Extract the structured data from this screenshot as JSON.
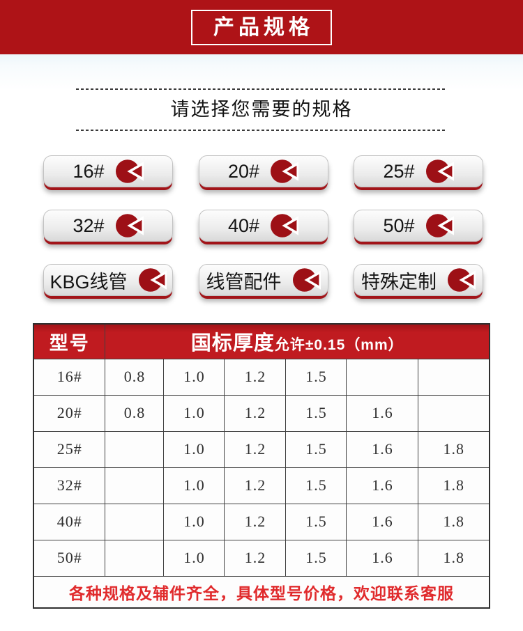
{
  "banner": {
    "title": "产品规格",
    "bg_color": "#ae1317"
  },
  "section": {
    "title": "请选择您需要的规格"
  },
  "buttons": [
    {
      "label": "16#"
    },
    {
      "label": "20#"
    },
    {
      "label": "25#"
    },
    {
      "label": "32#"
    },
    {
      "label": "40#"
    },
    {
      "label": "50#"
    },
    {
      "label": "KBG线管"
    },
    {
      "label": "线管配件"
    },
    {
      "label": "特殊定制"
    }
  ],
  "icons": {
    "button_icon": "pie-click-icon",
    "button_icon_color": "#9d1016"
  },
  "colors": {
    "banner_red": "#ae1317",
    "table_header_red": "#c01b20",
    "button_edge_red": "#a21419",
    "footer_text_red": "#e02a2c"
  },
  "table": {
    "header": {
      "model": "型号",
      "thickness_main": "国标厚度",
      "thickness_note": "允许±0.15（mm）"
    },
    "rows": [
      {
        "model": "16#",
        "values": [
          "0.8",
          "1.0",
          "1.2",
          "1.5",
          "",
          ""
        ]
      },
      {
        "model": "20#",
        "values": [
          "0.8",
          "1.0",
          "1.2",
          "1.5",
          "1.6",
          ""
        ]
      },
      {
        "model": "25#",
        "values": [
          "",
          "1.0",
          "1.2",
          "1.5",
          "1.6",
          "1.8"
        ]
      },
      {
        "model": "32#",
        "values": [
          "",
          "1.0",
          "1.2",
          "1.5",
          "1.6",
          "1.8"
        ]
      },
      {
        "model": "40#",
        "values": [
          "",
          "1.0",
          "1.2",
          "1.5",
          "1.6",
          "1.8"
        ]
      },
      {
        "model": "50#",
        "values": [
          "",
          "1.0",
          "1.2",
          "1.5",
          "1.6",
          "1.8"
        ]
      }
    ],
    "footer": "各种规格及辅件齐全，具体型号价格，欢迎联系客服"
  }
}
